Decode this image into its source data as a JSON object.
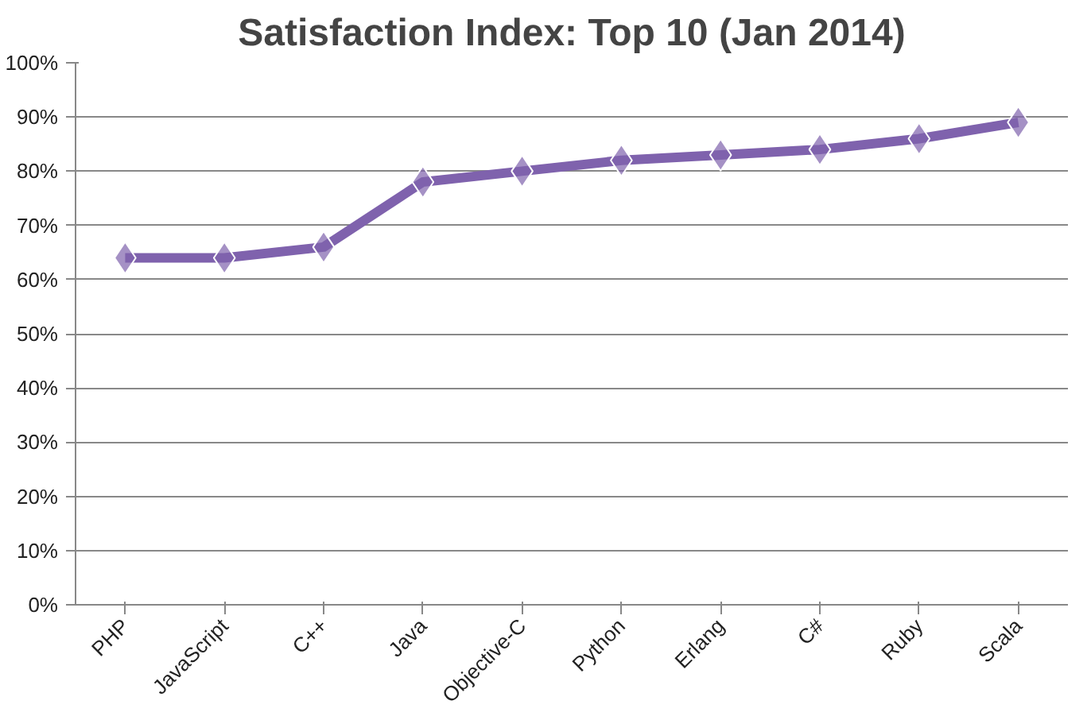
{
  "chart_data": {
    "type": "line",
    "title": "Satisfaction Index: Top 10 (Jan 2014)",
    "categories": [
      "PHP",
      "JavaScript",
      "C++",
      "Java",
      "Objective-C",
      "Python",
      "Erlang",
      "C#",
      "Ruby",
      "Scala"
    ],
    "series": [
      {
        "color": "#7f62ad",
        "values": [
          64,
          64,
          66,
          78,
          80,
          82,
          83,
          84,
          86,
          89
        ]
      }
    ],
    "ylim": [
      0,
      100
    ],
    "yticks": [
      {
        "value": 0,
        "label": "0%"
      },
      {
        "value": 10,
        "label": "10%"
      },
      {
        "value": 20,
        "label": "20%"
      },
      {
        "value": 30,
        "label": "30%"
      },
      {
        "value": 40,
        "label": "40%"
      },
      {
        "value": 50,
        "label": "50%"
      },
      {
        "value": 60,
        "label": "60%"
      },
      {
        "value": 70,
        "label": "70%"
      },
      {
        "value": 80,
        "label": "80%"
      },
      {
        "value": 90,
        "label": "90%"
      },
      {
        "value": 100,
        "label": "100%"
      }
    ],
    "grid": "y",
    "marker": "diamond",
    "line_style": "solid"
  }
}
